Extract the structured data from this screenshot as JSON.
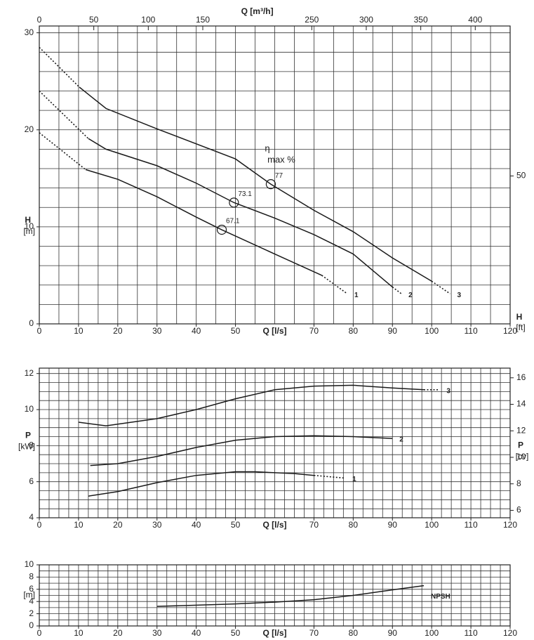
{
  "chart_data": [
    {
      "type": "line",
      "xlabel": "Q [l/s]",
      "x2label": "Q [m³/h]",
      "ylabel": "H",
      "yunit": "[m]",
      "y2label": "H",
      "y2unit": "[ft]",
      "xlim": [
        0,
        120
      ],
      "xticks": [
        0,
        10,
        20,
        30,
        40,
        50,
        70,
        80,
        90,
        100,
        110,
        120
      ],
      "x2lim": [
        0,
        432
      ],
      "x2ticks": [
        0,
        50,
        100,
        150,
        250,
        300,
        350,
        400
      ],
      "ylim": [
        0,
        30.7
      ],
      "yticks": [
        0,
        10,
        20,
        30
      ],
      "y2lim": [
        0,
        100.7
      ],
      "y2ticks": [
        50
      ],
      "grid": true,
      "grid_step": [
        5,
        2
      ],
      "annotation": [
        "η",
        "max %"
      ],
      "efficiency_points": [
        {
          "x": 59,
          "y": 14.4,
          "label": 77
        },
        {
          "x": 49.6,
          "y": 12.5,
          "label": 73.1
        },
        {
          "x": 46.5,
          "y": 9.7,
          "label": 67.1
        }
      ],
      "series": [
        {
          "style": "dotted",
          "color": "#1a1a1a",
          "x": [
            0,
            10.2
          ],
          "values": [
            28.5,
            24.4
          ]
        },
        {
          "style": "solid",
          "color": "#1a1a1a",
          "x": [
            10.2,
            17,
            30,
            50,
            59,
            70,
            80,
            90,
            100
          ],
          "values": [
            24.4,
            22.2,
            20.1,
            17.0,
            14.4,
            11.7,
            9.5,
            6.8,
            4.4
          ]
        },
        {
          "name": "3",
          "style": "dotted",
          "color": "#1a1a1a",
          "x": [
            100,
            104.7
          ],
          "values": [
            4.4,
            3.1
          ]
        },
        {
          "style": "dotted",
          "color": "#1a1a1a",
          "x": [
            0,
            12.5
          ],
          "values": [
            24.0,
            19.1
          ]
        },
        {
          "style": "solid",
          "color": "#1a1a1a",
          "x": [
            12.5,
            17,
            30,
            40,
            49.6,
            60,
            70,
            80,
            90
          ],
          "values": [
            19.1,
            18.0,
            16.3,
            14.5,
            12.5,
            10.9,
            9.2,
            7.2,
            3.8
          ]
        },
        {
          "name": "2",
          "style": "dotted",
          "color": "#1a1a1a",
          "x": [
            90,
            92.3
          ],
          "values": [
            3.8,
            3.1
          ]
        },
        {
          "style": "dotted",
          "color": "#1a1a1a",
          "x": [
            0,
            11.8
          ],
          "values": [
            19.7,
            15.9
          ]
        },
        {
          "style": "solid",
          "color": "#1a1a1a",
          "x": [
            11.8,
            20,
            30,
            40,
            46.5,
            60,
            72
          ],
          "values": [
            15.9,
            14.9,
            13.1,
            11.0,
            9.7,
            7.2,
            5.0
          ]
        },
        {
          "name": "1",
          "style": "dotted",
          "color": "#1a1a1a",
          "x": [
            72,
            78.5
          ],
          "values": [
            5.0,
            3.1
          ]
        }
      ]
    },
    {
      "type": "line",
      "xlabel": "Q [l/s]",
      "ylabel": "P",
      "yunit": "[kW]",
      "y2label": "P",
      "y2unit": "[cv]",
      "xlim": [
        0,
        120
      ],
      "xticks": [
        0,
        10,
        20,
        30,
        40,
        50,
        70,
        80,
        90,
        100,
        110,
        120
      ],
      "ylim": [
        4,
        12.3
      ],
      "yticks": [
        4,
        6,
        8,
        10,
        12
      ],
      "y2lim": [
        5.44,
        16.73
      ],
      "y2ticks": [
        6,
        8,
        10,
        12,
        14,
        16
      ],
      "grid": true,
      "grid_step": [
        2.5,
        0.5
      ],
      "series": [
        {
          "style": "solid",
          "color": "#1a1a1a",
          "x": [
            10,
            17,
            30,
            40,
            50,
            60,
            70,
            80,
            90,
            98
          ],
          "values": [
            9.3,
            9.1,
            9.5,
            10.0,
            10.6,
            11.1,
            11.3,
            11.35,
            11.2,
            11.1
          ]
        },
        {
          "name": "3",
          "style": "dotted",
          "color": "#1a1a1a",
          "x": [
            98,
            102
          ],
          "values": [
            11.1,
            11.1
          ]
        },
        {
          "name": "2",
          "style": "solid",
          "color": "#1a1a1a",
          "x": [
            13,
            20,
            30,
            40,
            50,
            60,
            70,
            80,
            90
          ],
          "values": [
            6.9,
            7.0,
            7.4,
            7.9,
            8.3,
            8.5,
            8.55,
            8.5,
            8.4
          ]
        },
        {
          "style": "solid",
          "color": "#1a1a1a",
          "x": [
            12.5,
            20,
            30,
            40,
            50,
            55,
            65,
            70
          ],
          "values": [
            5.2,
            5.45,
            5.95,
            6.35,
            6.55,
            6.55,
            6.45,
            6.35
          ]
        },
        {
          "name": "1",
          "style": "dotted",
          "color": "#1a1a1a",
          "x": [
            70,
            78
          ],
          "values": [
            6.35,
            6.2
          ]
        }
      ]
    },
    {
      "type": "line",
      "xlabel": "Q [l/s]",
      "yunit": "[m]",
      "xlim": [
        0,
        120
      ],
      "xticks": [
        0,
        10,
        20,
        30,
        40,
        50,
        70,
        80,
        90,
        100,
        110,
        120
      ],
      "ylim": [
        0,
        10
      ],
      "yticks": [
        0,
        2,
        4,
        6,
        8,
        10
      ],
      "grid": true,
      "grid_step": [
        2.5,
        1
      ],
      "series": [
        {
          "name": "NPSH",
          "style": "solid",
          "color": "#1a1a1a",
          "x": [
            30,
            50,
            60,
            70,
            80,
            90,
            98
          ],
          "values": [
            3.2,
            3.6,
            3.9,
            4.3,
            5.0,
            5.9,
            6.6
          ]
        }
      ]
    }
  ]
}
